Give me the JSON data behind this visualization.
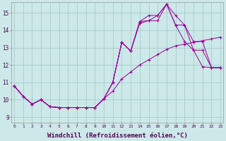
{
  "background_color": "#cce8e8",
  "grid_color": "#aacccc",
  "line_color": "#990099",
  "marker": "+",
  "xlabel": "Windchill (Refroidissement éolien,°C)",
  "xlabel_fontsize": 6.5,
  "ytick_labels": [
    "9",
    "10",
    "11",
    "12",
    "13",
    "14",
    "15"
  ],
  "ytick_vals": [
    9,
    10,
    11,
    12,
    13,
    14,
    15
  ],
  "xtick_vals": [
    0,
    1,
    2,
    3,
    4,
    5,
    6,
    7,
    8,
    9,
    10,
    11,
    12,
    13,
    14,
    15,
    16,
    17,
    18,
    19,
    20,
    21,
    22,
    23
  ],
  "xlim": [
    -0.3,
    23.3
  ],
  "ylim": [
    8.7,
    15.6
  ],
  "line1_x": [
    0,
    1,
    2,
    3,
    4,
    5,
    6,
    7,
    8,
    9,
    10,
    11,
    12,
    13,
    14,
    15,
    16,
    17,
    18,
    19,
    20,
    21,
    22,
    23
  ],
  "line1_y": [
    10.8,
    10.2,
    9.75,
    10.0,
    9.6,
    9.55,
    9.55,
    9.55,
    9.55,
    9.55,
    10.05,
    11.0,
    13.3,
    12.8,
    14.4,
    14.55,
    14.55,
    15.5,
    14.3,
    13.35,
    12.85,
    11.9,
    11.85,
    11.85
  ],
  "line2_x": [
    0,
    1,
    2,
    3,
    4,
    5,
    6,
    7,
    8,
    9,
    10,
    11,
    12,
    13,
    14,
    15,
    16,
    17,
    18,
    19,
    20,
    21,
    22,
    23
  ],
  "line2_y": [
    10.8,
    10.2,
    9.75,
    10.0,
    9.6,
    9.55,
    9.55,
    9.55,
    9.55,
    9.55,
    10.05,
    11.0,
    13.3,
    12.8,
    14.5,
    14.85,
    14.85,
    15.5,
    14.85,
    14.3,
    13.35,
    13.35,
    11.85,
    11.85
  ],
  "line3_x": [
    0,
    1,
    2,
    3,
    4,
    5,
    6,
    7,
    8,
    9,
    10,
    11,
    12,
    13,
    14,
    15,
    16,
    17,
    18,
    19,
    20,
    21,
    22,
    23
  ],
  "line3_y": [
    10.8,
    10.2,
    9.75,
    10.0,
    9.6,
    9.55,
    9.55,
    9.55,
    9.55,
    9.55,
    10.05,
    11.0,
    13.3,
    12.8,
    14.5,
    14.55,
    14.85,
    15.5,
    14.3,
    14.3,
    12.85,
    12.85,
    11.85,
    11.85
  ],
  "line4_x": [
    0,
    1,
    2,
    3,
    4,
    5,
    6,
    7,
    8,
    9,
    10,
    11,
    12,
    13,
    14,
    15,
    16,
    17,
    18,
    19,
    20,
    21,
    22,
    23
  ],
  "line4_y": [
    10.8,
    10.2,
    9.75,
    10.0,
    9.6,
    9.55,
    9.55,
    9.55,
    9.55,
    9.55,
    10.05,
    10.5,
    11.2,
    11.6,
    12.0,
    12.3,
    12.6,
    12.9,
    13.1,
    13.2,
    13.3,
    13.4,
    13.5,
    13.6
  ]
}
